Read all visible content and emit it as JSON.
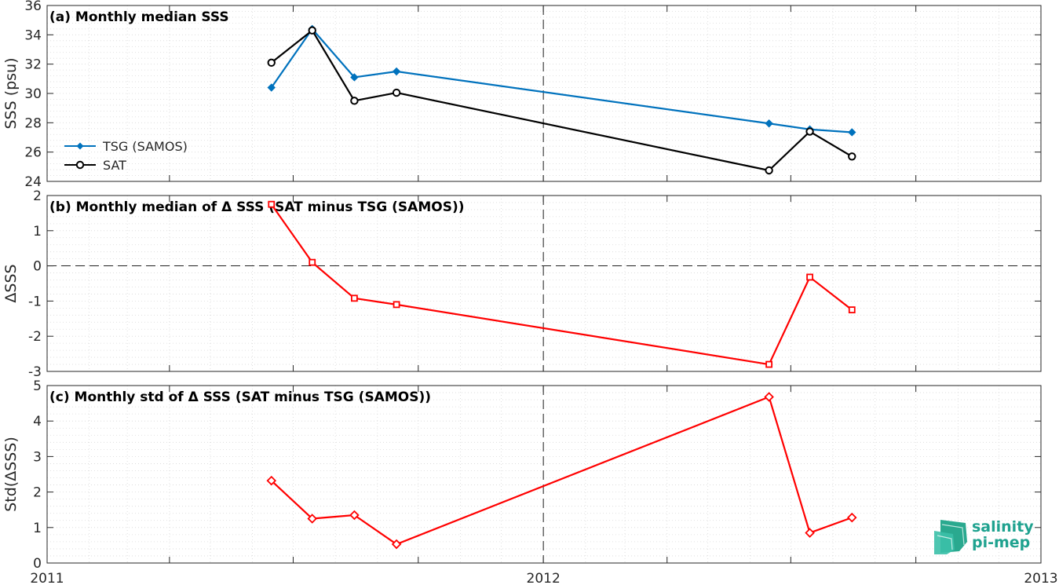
{
  "chart_data": [
    {
      "type": "line",
      "title": "(a) Monthly median SSS",
      "ylabel": "SSS (psu)",
      "ylim": [
        24,
        36
      ],
      "yticks": [
        24,
        26,
        28,
        30,
        32,
        34,
        36
      ],
      "legend_position": "left",
      "series": [
        {
          "name": "TSG (SAMOS)",
          "color": "#0072BD",
          "marker": "filled-diamond",
          "x": [
            "2011-06-15",
            "2011-07-15",
            "2011-08-15",
            "2011-09-15",
            "2012-06-15",
            "2012-07-15",
            "2012-08-15"
          ],
          "values": [
            30.4,
            34.4,
            31.1,
            31.5,
            27.95,
            27.55,
            27.35
          ]
        },
        {
          "name": "SAT",
          "color": "#000000",
          "marker": "circle",
          "x": [
            "2011-06-15",
            "2011-07-15",
            "2011-08-15",
            "2011-09-15",
            "2012-06-15",
            "2012-07-15",
            "2012-08-15"
          ],
          "values": [
            32.1,
            34.3,
            29.5,
            30.05,
            24.75,
            27.4,
            25.7
          ]
        }
      ]
    },
    {
      "type": "line",
      "title": "(b) Monthly median of Δ SSS (SAT minus TSG (SAMOS))",
      "ylabel": "ΔSSS",
      "ylim": [
        -3,
        2
      ],
      "yticks": [
        -3,
        -2,
        -1,
        0,
        1,
        2
      ],
      "series": [
        {
          "color": "#FF0000",
          "marker": "square",
          "x": [
            "2011-06-15",
            "2011-07-15",
            "2011-08-15",
            "2011-09-15",
            "2012-06-15",
            "2012-07-15",
            "2012-08-15"
          ],
          "values": [
            1.75,
            0.1,
            -0.92,
            -1.1,
            -2.8,
            -0.32,
            -1.25
          ]
        }
      ]
    },
    {
      "type": "line",
      "title": "(c) Monthly std of Δ SSS (SAT minus TSG (SAMOS))",
      "ylabel": "Std(ΔSSS)",
      "ylim": [
        0,
        5
      ],
      "yticks": [
        0,
        1,
        2,
        3,
        4,
        5
      ],
      "series": [
        {
          "color": "#FF0000",
          "marker": "diamond",
          "x": [
            "2011-06-15",
            "2011-07-15",
            "2011-08-15",
            "2011-09-15",
            "2012-06-15",
            "2012-07-15",
            "2012-08-15"
          ],
          "values": [
            2.32,
            1.25,
            1.35,
            0.53,
            4.68,
            0.85,
            1.28
          ]
        }
      ]
    }
  ],
  "x_axis": {
    "range": [
      "2011-01-01",
      "2013-01-01"
    ],
    "ticks": [
      {
        "label": "2011",
        "date": "2011-01-01"
      },
      {
        "label": "2012",
        "date": "2012-01-01"
      },
      {
        "label": "2013",
        "date": "2013-01-01"
      }
    ],
    "reference_line_date": "2012-01-01"
  },
  "logo": {
    "line1": "salinity",
    "line2": "pi-mep",
    "color": "#1fa28f"
  }
}
